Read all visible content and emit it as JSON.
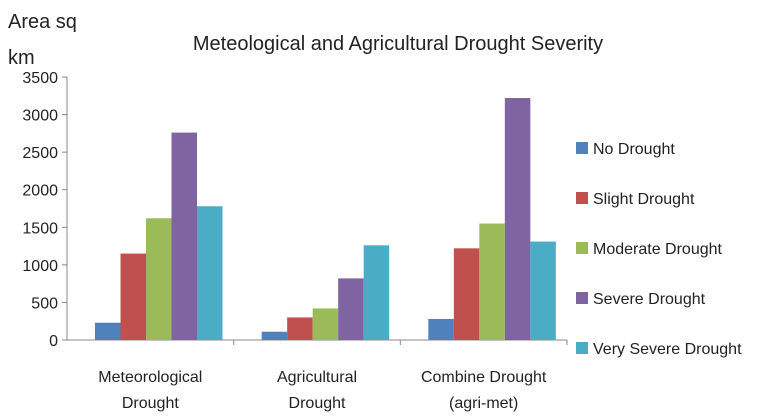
{
  "chart_data": {
    "type": "bar",
    "title": "Meteological and Agricultural Drought Severity",
    "ylabel": [
      "Area sq",
      "km"
    ],
    "xlabel": "",
    "categories": [
      [
        "Meteorological",
        "Drought"
      ],
      [
        "Agricultural",
        "Drought"
      ],
      [
        "Combine Drought",
        "(agri-met)"
      ]
    ],
    "ylim": [
      0,
      3500
    ],
    "yticks": [
      0,
      500,
      1000,
      1500,
      2000,
      2500,
      3000,
      3500
    ],
    "grid": false,
    "legend_position": "right",
    "series": [
      {
        "name": "No Drought",
        "color": "#4f81bd",
        "values": [
          230,
          110,
          280
        ]
      },
      {
        "name": "Slight Drought",
        "color": "#c0504d",
        "values": [
          1150,
          300,
          1220
        ]
      },
      {
        "name": "Moderate Drought",
        "color": "#9bbb59",
        "values": [
          1620,
          420,
          1550
        ]
      },
      {
        "name": "Severe Drought",
        "color": "#8064a2",
        "values": [
          2760,
          820,
          3220
        ]
      },
      {
        "name": "Very Severe Drought",
        "color": "#4bacc6",
        "values": [
          1780,
          1260,
          1310
        ]
      }
    ]
  }
}
